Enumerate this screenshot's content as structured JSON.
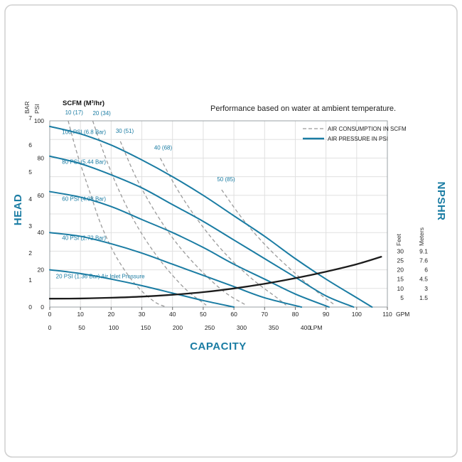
{
  "note": "Performance based on water at ambient temperature.",
  "scfm_header": "SCFM (M³/hr)",
  "legend": {
    "items": [
      {
        "label": "AIR CONSUMPTION IN SCFM",
        "line_style": "dashed",
        "color": "#9b9b9b"
      },
      {
        "label": "AIR PRESSURE IN PSI",
        "line_style": "solid",
        "color": "#1a7ca3"
      }
    ]
  },
  "axis_titles": {
    "head": "HEAD",
    "capacity": "CAPACITY",
    "npshr": "NPSHR",
    "bar": "BAR",
    "psi": "PSI",
    "feet": "Feet",
    "meters": "Meters"
  },
  "colors": {
    "accent_blue": "#1a7ca3",
    "consumption_gray": "#9b9b9b",
    "npshr_black": "#1c1c1c",
    "grid": "#e0e0e0"
  },
  "chart_data": {
    "type": "line",
    "title": "Performance based on water at ambient temperature.",
    "xlabel": "CAPACITY",
    "ylabel": "HEAD",
    "grid": true,
    "legend_position": "top-right",
    "x_axis": {
      "label": "GPM",
      "min": 0,
      "max": 110,
      "ticks": [
        0,
        10,
        20,
        30,
        40,
        50,
        60,
        70,
        80,
        90,
        100,
        110
      ],
      "unit_suffix": "GPM"
    },
    "x_axis_secondary": {
      "label": "LPM",
      "ticks": [
        0,
        50,
        100,
        150,
        200,
        250,
        300,
        350,
        400
      ],
      "unit_suffix": "LPM"
    },
    "y_axis_psi": {
      "label": "PSI",
      "min": 0,
      "max": 100,
      "ticks": [
        0,
        20,
        40,
        60,
        80,
        100
      ]
    },
    "y_axis_bar": {
      "label": "BAR",
      "ticks": [
        0,
        1,
        2,
        3,
        4,
        5,
        6,
        7
      ],
      "psi_per_bar": 14.5
    },
    "npshr_axis": {
      "label": "NPSHR",
      "feet_label": "Feet",
      "meters_label": "Meters",
      "feet_ticks": [
        30,
        25,
        20,
        15,
        10,
        5
      ],
      "meters_ticks": [
        9.1,
        7.6,
        6,
        4.5,
        3,
        1.5
      ]
    },
    "air_pressure_curves": [
      {
        "label": "100 PSI (6.8 Bar)",
        "label_pos": [
          4,
          93
        ],
        "points": [
          [
            0,
            97
          ],
          [
            10,
            93
          ],
          [
            20,
            87
          ],
          [
            30,
            79
          ],
          [
            40,
            70
          ],
          [
            50,
            60
          ],
          [
            60,
            49
          ],
          [
            70,
            38
          ],
          [
            80,
            26
          ],
          [
            90,
            15
          ],
          [
            100,
            5
          ],
          [
            105,
            0
          ]
        ]
      },
      {
        "label": "80 PSI (5.44 Bar)",
        "label_pos": [
          4,
          77
        ],
        "points": [
          [
            0,
            81
          ],
          [
            10,
            77
          ],
          [
            20,
            71
          ],
          [
            30,
            64
          ],
          [
            40,
            55
          ],
          [
            50,
            46
          ],
          [
            60,
            36
          ],
          [
            70,
            26
          ],
          [
            80,
            16
          ],
          [
            90,
            6
          ],
          [
            99,
            0
          ]
        ]
      },
      {
        "label": "60 PSI (4.08 Bar)",
        "label_pos": [
          4,
          57
        ],
        "points": [
          [
            0,
            62
          ],
          [
            10,
            59
          ],
          [
            20,
            54
          ],
          [
            30,
            47
          ],
          [
            40,
            40
          ],
          [
            50,
            32
          ],
          [
            60,
            23
          ],
          [
            70,
            15
          ],
          [
            80,
            7
          ],
          [
            91,
            0
          ]
        ]
      },
      {
        "label": "40 PSI (2.72 Bar)",
        "label_pos": [
          4,
          36
        ],
        "points": [
          [
            0,
            40
          ],
          [
            10,
            38
          ],
          [
            20,
            34
          ],
          [
            30,
            29
          ],
          [
            40,
            23
          ],
          [
            50,
            17
          ],
          [
            60,
            11
          ],
          [
            70,
            5
          ],
          [
            82,
            0
          ]
        ]
      },
      {
        "label": "20 PSI (1.36 Bar) Air Inlet Pressure",
        "label_pos": [
          2,
          15.5
        ],
        "points": [
          [
            0,
            20
          ],
          [
            10,
            18
          ],
          [
            20,
            15
          ],
          [
            30,
            11.5
          ],
          [
            40,
            7.5
          ],
          [
            50,
            3.5
          ],
          [
            60,
            0
          ]
        ]
      }
    ],
    "air_consumption_curves": [
      {
        "label": "10 (17)",
        "label_pos": [
          5,
          103.5
        ],
        "points": [
          [
            6,
            100
          ],
          [
            9,
            82
          ],
          [
            13,
            62
          ],
          [
            17,
            43
          ],
          [
            22,
            26
          ],
          [
            28,
            12
          ],
          [
            34,
            3
          ],
          [
            38,
            0
          ]
        ]
      },
      {
        "label": "20 (34)",
        "label_pos": [
          14,
          103
        ],
        "points": [
          [
            14,
            100
          ],
          [
            18,
            81
          ],
          [
            23,
            61
          ],
          [
            29,
            42
          ],
          [
            36,
            25
          ],
          [
            44,
            10
          ],
          [
            51,
            1
          ]
        ]
      },
      {
        "label": "30 (51)",
        "label_pos": [
          21.5,
          93.5
        ],
        "points": [
          [
            23,
            89
          ],
          [
            28,
            70
          ],
          [
            34,
            52
          ],
          [
            41,
            35
          ],
          [
            49,
            20
          ],
          [
            57,
            8
          ],
          [
            64,
            1
          ]
        ]
      },
      {
        "label": "40 (68)",
        "label_pos": [
          34,
          84.5
        ],
        "points": [
          [
            36,
            80
          ],
          [
            42,
            62
          ],
          [
            49,
            45
          ],
          [
            57,
            29
          ],
          [
            66,
            15
          ],
          [
            74,
            5
          ],
          [
            77,
            1
          ]
        ]
      },
      {
        "label": "50 (85)",
        "label_pos": [
          54.5,
          67.5
        ],
        "points": [
          [
            56,
            63
          ],
          [
            63,
            47
          ],
          [
            71,
            32
          ],
          [
            80,
            18
          ],
          [
            88,
            7
          ],
          [
            93,
            1
          ]
        ]
      }
    ],
    "npshr_curve": {
      "name": "NPSHR",
      "points_gpm_feet": [
        [
          0,
          4.5
        ],
        [
          10,
          4.6
        ],
        [
          20,
          5
        ],
        [
          30,
          5.6
        ],
        [
          40,
          6.6
        ],
        [
          50,
          8
        ],
        [
          60,
          10
        ],
        [
          70,
          12.5
        ],
        [
          80,
          15.5
        ],
        [
          90,
          19
        ],
        [
          100,
          23
        ],
        [
          108,
          27
        ]
      ]
    }
  }
}
